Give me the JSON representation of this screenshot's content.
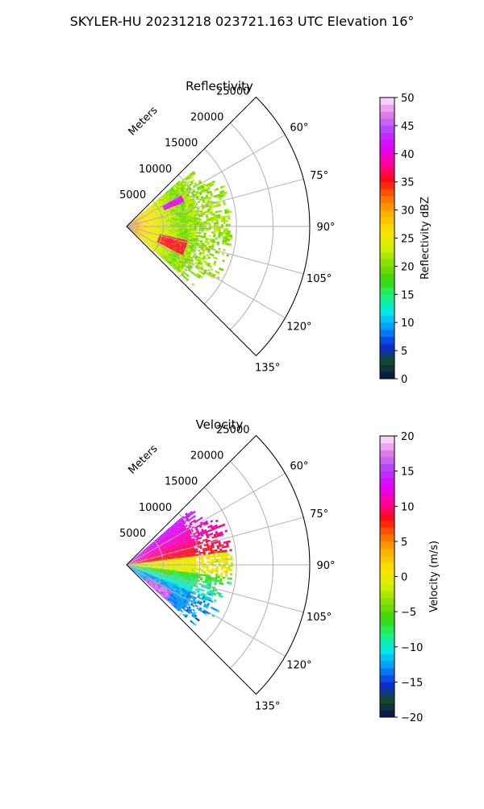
{
  "suptitle": "SKYLER-HU  20231218  023721.163 UTC Elevation 16°",
  "chart_data": [
    {
      "type": "heatmap",
      "projection": "polar-sector",
      "title": "Reflectivity",
      "radial_label": "Meters",
      "radial_ticks": [
        5000,
        10000,
        15000,
        20000,
        25000
      ],
      "radial_tick_labels": [
        "5000",
        "10000",
        "15000",
        "20000",
        "25000"
      ],
      "rlim": [
        0,
        25000
      ],
      "angular_range_deg": [
        45,
        135
      ],
      "angular_ticks": [
        60,
        75,
        90,
        105,
        120,
        135
      ],
      "angular_tick_labels": [
        "60°",
        "75°",
        "90°",
        "105°",
        "120°",
        "135°"
      ],
      "grid": true,
      "colorbar": {
        "label": "Reflectivity dBZ",
        "range": [
          0,
          50
        ],
        "ticks": [
          0,
          5,
          10,
          15,
          20,
          25,
          30,
          35,
          40,
          45,
          50
        ],
        "tick_labels": [
          "0",
          "5",
          "10",
          "15",
          "20",
          "25",
          "30",
          "35",
          "40",
          "45",
          "50"
        ],
        "colors": [
          "#0b1052",
          "#124a2a",
          "#0a2bd8",
          "#0090ff",
          "#00e8f0",
          "#1cf27a",
          "#3bd400",
          "#8ae000",
          "#d8f000",
          "#ffe200",
          "#ffb000",
          "#ff6a00",
          "#ff0a10",
          "#ff00a0",
          "#e000ff",
          "#b040ff",
          "#e080e8",
          "#ffe6ff"
        ]
      },
      "field_summary": [
        {
          "azimuth_range": [
            49,
            131
          ],
          "range_m": [
            0,
            13500
          ],
          "value_range": [
            15,
            35
          ]
        },
        {
          "azimuth_range": [
            58,
            125
          ],
          "range_m": [
            7000,
            13000
          ],
          "value_range": [
            18,
            22
          ]
        },
        {
          "azimuth_range": [
            60,
            66
          ],
          "range_m": [
            6000,
            8500
          ],
          "value_range": [
            35,
            44
          ]
        },
        {
          "azimuth_range": [
            104,
            116
          ],
          "range_m": [
            4500,
            8500
          ],
          "value_range": [
            32,
            38
          ]
        }
      ]
    },
    {
      "type": "heatmap",
      "projection": "polar-sector",
      "title": "Velocity",
      "radial_label": "Meters",
      "radial_ticks": [
        5000,
        10000,
        15000,
        20000,
        25000
      ],
      "radial_tick_labels": [
        "5000",
        "10000",
        "15000",
        "20000",
        "25000"
      ],
      "rlim": [
        0,
        25000
      ],
      "angular_range_deg": [
        45,
        135
      ],
      "angular_ticks": [
        60,
        75,
        90,
        105,
        120,
        135
      ],
      "angular_tick_labels": [
        "60°",
        "75°",
        "90°",
        "105°",
        "120°",
        "135°"
      ],
      "grid": true,
      "colorbar": {
        "label": "Velocity (m/s)",
        "range": [
          -20,
          20
        ],
        "ticks": [
          -20,
          -15,
          -10,
          -5,
          0,
          5,
          10,
          15,
          20
        ],
        "tick_labels": [
          "−20",
          "−15",
          "−10",
          "−5",
          "0",
          "5",
          "10",
          "15",
          "20"
        ],
        "colors": [
          "#0b1052",
          "#124a2a",
          "#0a2bd8",
          "#0090ff",
          "#00e8f0",
          "#1cf27a",
          "#3bd400",
          "#8ae000",
          "#d8f000",
          "#ffe200",
          "#ffb000",
          "#ff6a00",
          "#ff0a10",
          "#ff00a0",
          "#e000ff",
          "#b040ff",
          "#e080e8",
          "#ffe6ff"
        ]
      },
      "field_summary": [
        {
          "azimuth_range": [
            50,
            82
          ],
          "range_m": [
            0,
            12500
          ],
          "value_range": [
            5,
            15
          ]
        },
        {
          "azimuth_range": [
            82,
            98
          ],
          "range_m": [
            0,
            12000
          ],
          "value_range": [
            -2,
            3
          ]
        },
        {
          "azimuth_range": [
            98,
            112
          ],
          "range_m": [
            0,
            13000
          ],
          "value_range": [
            -10,
            -5
          ]
        },
        {
          "azimuth_range": [
            112,
            130
          ],
          "range_m": [
            3000,
            13000
          ],
          "value_range": [
            -14,
            -10
          ]
        },
        {
          "azimuth_range": [
            122,
            132
          ],
          "range_m": [
            3000,
            8000
          ],
          "value_range": [
            14,
            18
          ]
        }
      ]
    }
  ]
}
